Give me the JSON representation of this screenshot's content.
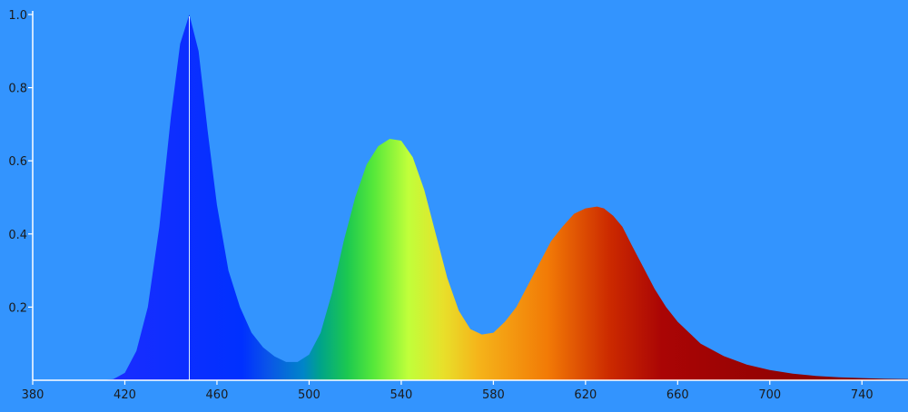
{
  "colors": {
    "background": "#3394fe",
    "axis": "#ffffff",
    "tick_text": "#1a1a1a",
    "peak_marker": "#d8ecff"
  },
  "chart_data": {
    "type": "area",
    "title": "",
    "xlabel": "",
    "ylabel": "",
    "xlim": [
      380,
      760
    ],
    "ylim": [
      0,
      1.0
    ],
    "grid": false,
    "legend": "none",
    "x_ticks": [
      380,
      420,
      460,
      500,
      540,
      580,
      620,
      660,
      700,
      740
    ],
    "y_ticks": [
      0.2,
      0.4,
      0.6,
      0.8,
      1.0
    ],
    "y_tick_labels": [
      "0.2",
      "0.4",
      "0.6",
      "0.8",
      "1.0"
    ],
    "fill": "visible-spectrum-gradient",
    "peak_marker_x": 448,
    "series": [
      {
        "x": [
          380,
          410,
          415,
          420,
          425,
          430,
          435,
          440,
          444,
          448,
          452,
          456,
          460,
          465,
          470,
          475,
          480,
          485,
          490,
          495,
          500,
          505,
          510,
          515,
          520,
          525,
          530,
          535,
          540,
          545,
          550,
          555,
          560,
          565,
          570,
          575,
          580,
          585,
          590,
          595,
          600,
          605,
          610,
          615,
          620,
          625,
          628,
          632,
          636,
          640,
          645,
          650,
          655,
          660,
          665,
          670,
          680,
          690,
          700,
          710,
          720,
          730,
          740,
          750,
          760
        ],
        "y": [
          0,
          0,
          0.003,
          0.02,
          0.08,
          0.2,
          0.42,
          0.72,
          0.92,
          1.0,
          0.9,
          0.68,
          0.48,
          0.3,
          0.2,
          0.13,
          0.09,
          0.065,
          0.05,
          0.05,
          0.07,
          0.13,
          0.24,
          0.38,
          0.5,
          0.59,
          0.64,
          0.66,
          0.655,
          0.61,
          0.52,
          0.4,
          0.28,
          0.19,
          0.14,
          0.125,
          0.13,
          0.16,
          0.2,
          0.26,
          0.32,
          0.38,
          0.42,
          0.455,
          0.47,
          0.475,
          0.47,
          0.45,
          0.42,
          0.37,
          0.31,
          0.25,
          0.2,
          0.16,
          0.13,
          0.1,
          0.066,
          0.043,
          0.028,
          0.018,
          0.012,
          0.008,
          0.006,
          0.004,
          0.003
        ]
      }
    ]
  }
}
